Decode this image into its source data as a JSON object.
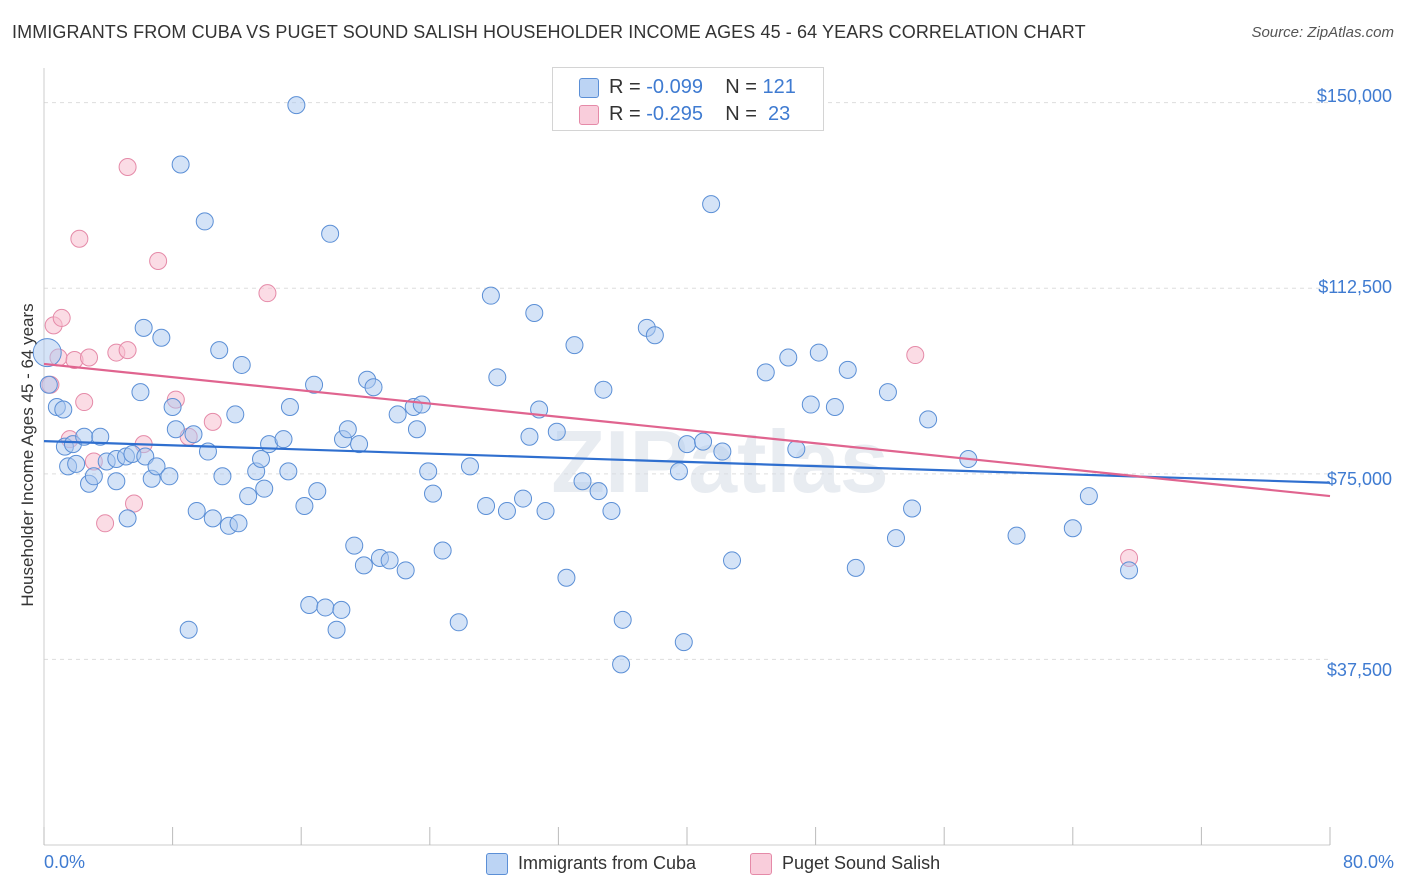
{
  "title": "IMMIGRANTS FROM CUBA VS PUGET SOUND SALISH HOUSEHOLDER INCOME AGES 45 - 64 YEARS CORRELATION CHART",
  "source": "Source: ZipAtlas.com",
  "watermark": "ZIPatlas",
  "colors": {
    "blue_fill": "#a9c8f0",
    "blue_stroke": "#5b8fd6",
    "blue_line": "#2f6fcf",
    "pink_fill": "#f7bfd0",
    "pink_stroke": "#e58aa8",
    "pink_line": "#e0648f",
    "tick_text": "#3f7bd1",
    "grid": "#dddddd"
  },
  "legend": {
    "rows": [
      {
        "r_label": "R =",
        "r_value": "-0.099",
        "n_label": "N =",
        "n_value": "121"
      },
      {
        "r_label": "R =",
        "r_value": "-0.295",
        "n_label": "N =",
        "n_value": "23"
      }
    ]
  },
  "bottom_legend": [
    "Immigrants from Cuba",
    "Puget Sound Salish"
  ],
  "chart_data": {
    "type": "scatter",
    "title": "IMMIGRANTS FROM CUBA VS PUGET SOUND SALISH HOUSEHOLDER INCOME AGES 45 - 64 YEARS CORRELATION CHART",
    "xlabel": "",
    "ylabel": "Householder Income Ages 45 - 64 years",
    "xlim": [
      0,
      80
    ],
    "ylim": [
      0,
      157000
    ],
    "x_tick_labels": [
      "0.0%",
      "80.0%"
    ],
    "y_ticks": [
      37500,
      75000,
      112500,
      150000
    ],
    "y_tick_labels": [
      "$37,500",
      "$75,000",
      "$112,500",
      "$150,000"
    ],
    "grid": true,
    "legend_position": "top-center",
    "series": [
      {
        "name": "Immigrants from Cuba",
        "R": -0.099,
        "N": 121,
        "trend": {
          "x": [
            0,
            80
          ],
          "y": [
            81600,
            73200
          ]
        },
        "points": [
          [
            0.2,
            99500
          ],
          [
            0.3,
            93000
          ],
          [
            0.8,
            88500
          ],
          [
            1.2,
            88000
          ],
          [
            1.3,
            80500
          ],
          [
            1.5,
            76500
          ],
          [
            1.8,
            81000
          ],
          [
            2.0,
            77000
          ],
          [
            2.5,
            82500
          ],
          [
            2.8,
            73000
          ],
          [
            3.1,
            74500
          ],
          [
            3.5,
            82500
          ],
          [
            3.9,
            77500
          ],
          [
            4.5,
            73500
          ],
          [
            4.5,
            78000
          ],
          [
            5.1,
            78500
          ],
          [
            5.2,
            66000
          ],
          [
            5.5,
            79000
          ],
          [
            6.0,
            91500
          ],
          [
            6.2,
            104500
          ],
          [
            6.3,
            78500
          ],
          [
            6.7,
            74000
          ],
          [
            7.0,
            76500
          ],
          [
            7.3,
            102500
          ],
          [
            7.8,
            74500
          ],
          [
            8.0,
            88500
          ],
          [
            8.2,
            84000
          ],
          [
            8.5,
            137500
          ],
          [
            9.0,
            43500
          ],
          [
            9.3,
            83000
          ],
          [
            9.5,
            67500
          ],
          [
            10.0,
            126000
          ],
          [
            10.2,
            79500
          ],
          [
            10.5,
            66000
          ],
          [
            10.9,
            100000
          ],
          [
            11.1,
            74500
          ],
          [
            11.5,
            64500
          ],
          [
            11.9,
            87000
          ],
          [
            12.1,
            65000
          ],
          [
            12.3,
            97000
          ],
          [
            12.7,
            70500
          ],
          [
            13.2,
            75500
          ],
          [
            13.5,
            78000
          ],
          [
            13.7,
            72000
          ],
          [
            14.0,
            81000
          ],
          [
            14.9,
            82000
          ],
          [
            15.2,
            75500
          ],
          [
            15.3,
            88500
          ],
          [
            15.7,
            149500
          ],
          [
            16.2,
            68500
          ],
          [
            16.5,
            48500
          ],
          [
            16.8,
            93000
          ],
          [
            17.0,
            71500
          ],
          [
            17.5,
            48000
          ],
          [
            17.8,
            123500
          ],
          [
            18.2,
            43500
          ],
          [
            18.5,
            47500
          ],
          [
            18.6,
            82000
          ],
          [
            18.9,
            84000
          ],
          [
            19.3,
            60500
          ],
          [
            19.6,
            81000
          ],
          [
            19.9,
            56500
          ],
          [
            20.1,
            94000
          ],
          [
            20.5,
            92500
          ],
          [
            20.9,
            58000
          ],
          [
            21.5,
            57500
          ],
          [
            22.0,
            87000
          ],
          [
            22.5,
            55500
          ],
          [
            23.0,
            88500
          ],
          [
            23.2,
            84000
          ],
          [
            23.5,
            89000
          ],
          [
            23.9,
            75500
          ],
          [
            24.2,
            71000
          ],
          [
            24.8,
            59500
          ],
          [
            25.8,
            45000
          ],
          [
            26.5,
            76500
          ],
          [
            27.5,
            68500
          ],
          [
            27.8,
            111000
          ],
          [
            28.2,
            94500
          ],
          [
            28.8,
            67500
          ],
          [
            29.8,
            70000
          ],
          [
            30.2,
            82500
          ],
          [
            30.5,
            107500
          ],
          [
            30.8,
            88000
          ],
          [
            31.2,
            67500
          ],
          [
            31.9,
            83500
          ],
          [
            32.5,
            54000
          ],
          [
            33.0,
            101000
          ],
          [
            33.5,
            73500
          ],
          [
            34.5,
            71500
          ],
          [
            34.8,
            92000
          ],
          [
            35.3,
            67500
          ],
          [
            36.0,
            45500
          ],
          [
            35.9,
            36500
          ],
          [
            37.5,
            104500
          ],
          [
            38.0,
            103000
          ],
          [
            39.5,
            75500
          ],
          [
            39.8,
            41000
          ],
          [
            40.0,
            81000
          ],
          [
            41.0,
            81500
          ],
          [
            41.5,
            129500
          ],
          [
            42.2,
            79500
          ],
          [
            42.8,
            57500
          ],
          [
            44.9,
            95500
          ],
          [
            46.3,
            98500
          ],
          [
            46.8,
            80000
          ],
          [
            47.7,
            89000
          ],
          [
            48.2,
            99500
          ],
          [
            49.2,
            88500
          ],
          [
            50.0,
            96000
          ],
          [
            50.5,
            56000
          ],
          [
            52.5,
            91500
          ],
          [
            53.0,
            62000
          ],
          [
            54.0,
            68000
          ],
          [
            55.0,
            86000
          ],
          [
            57.5,
            78000
          ],
          [
            60.5,
            62500
          ],
          [
            64.0,
            64000
          ],
          [
            65.0,
            70500
          ],
          [
            67.5,
            55500
          ]
        ]
      },
      {
        "name": "Puget Sound Salish",
        "R": -0.295,
        "N": 23,
        "trend": {
          "x": [
            0,
            80
          ],
          "y": [
            97200,
            70500
          ]
        },
        "points": [
          [
            0.4,
            93000
          ],
          [
            0.6,
            105000
          ],
          [
            0.9,
            98500
          ],
          [
            1.1,
            106500
          ],
          [
            1.6,
            82000
          ],
          [
            1.9,
            98000
          ],
          [
            2.2,
            122500
          ],
          [
            2.5,
            89500
          ],
          [
            2.8,
            98500
          ],
          [
            3.1,
            77500
          ],
          [
            3.8,
            65000
          ],
          [
            4.5,
            99500
          ],
          [
            5.2,
            100000
          ],
          [
            5.2,
            137000
          ],
          [
            5.6,
            69000
          ],
          [
            6.2,
            81000
          ],
          [
            7.1,
            118000
          ],
          [
            8.2,
            90000
          ],
          [
            9.0,
            82500
          ],
          [
            10.5,
            85500
          ],
          [
            13.9,
            111500
          ],
          [
            54.2,
            99000
          ],
          [
            67.5,
            58000
          ]
        ]
      }
    ]
  }
}
